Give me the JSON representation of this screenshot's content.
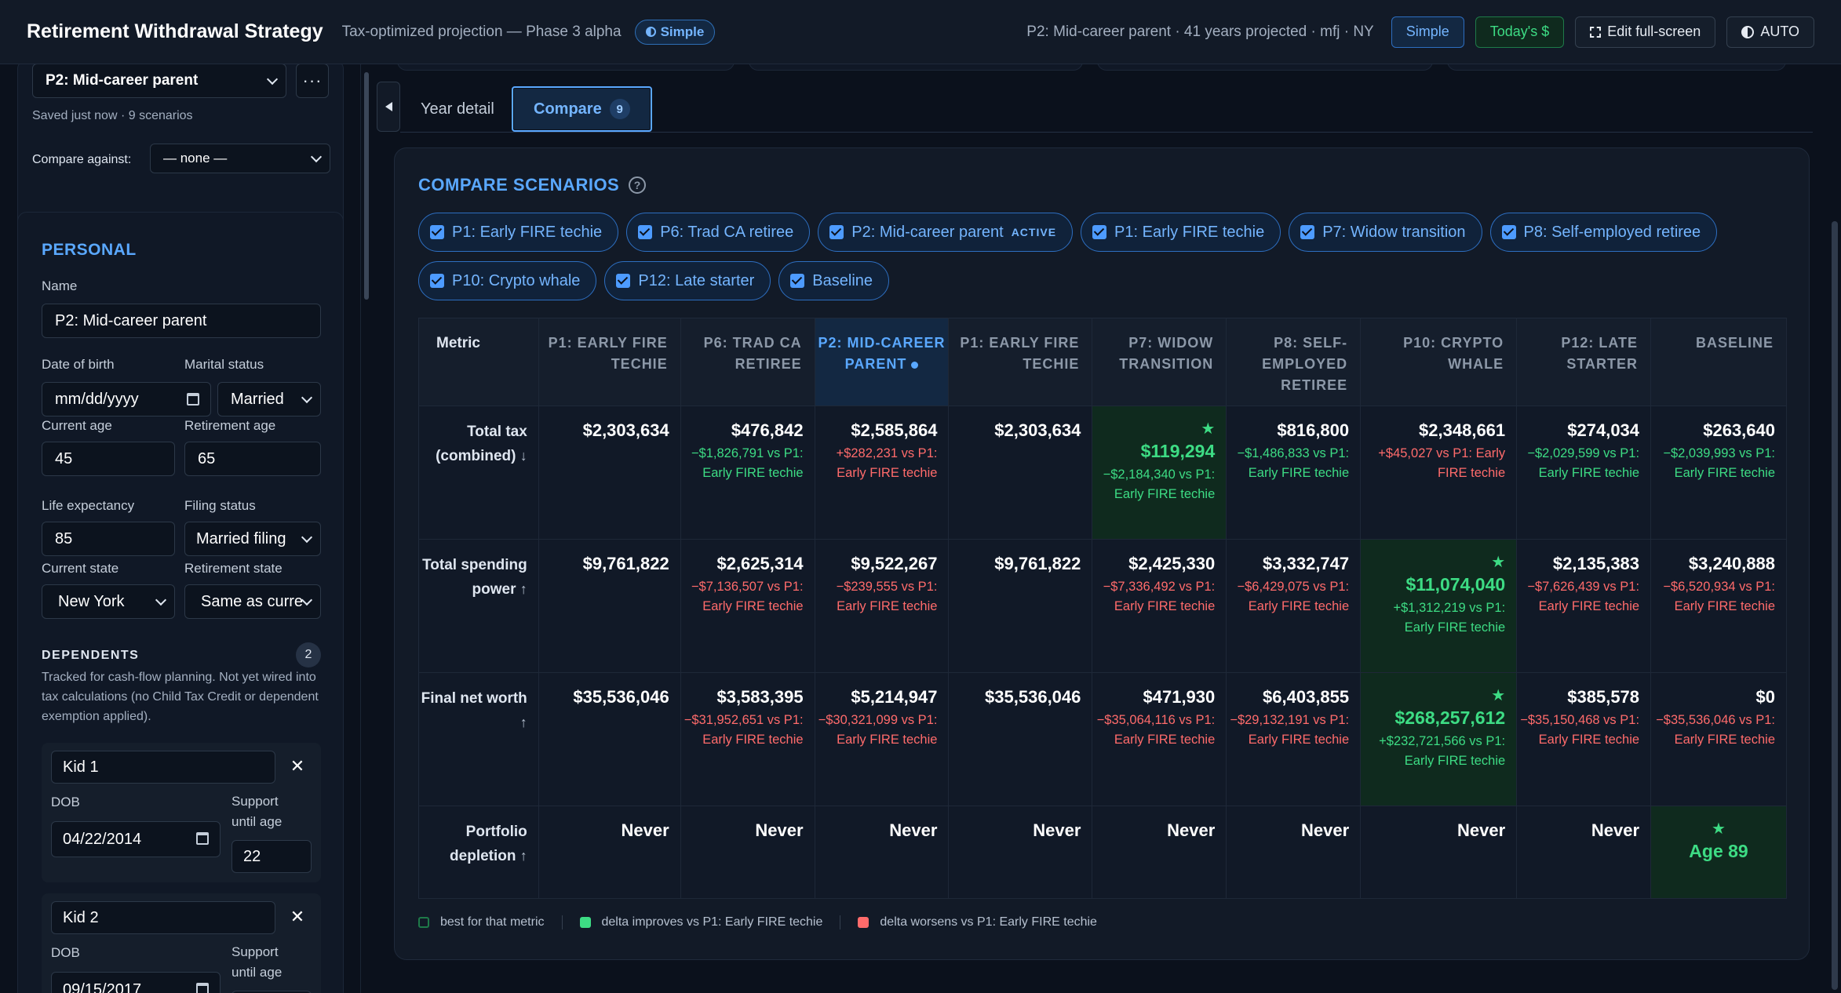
{
  "header": {
    "title": "Retirement Withdrawal Strategy",
    "subtitle": "Tax-optimized projection — Phase 3 alpha",
    "mode_pill": "Simple",
    "scenario_summary": "P2: Mid-career parent · 41 years projected · mfj · NY",
    "btn_simple": "Simple",
    "btn_todays": "Today's $",
    "btn_fullscreen": "Edit full-screen",
    "btn_theme": "AUTO"
  },
  "sidebar": {
    "scenario_select": "P2: Mid-career parent",
    "more_label": "···",
    "saved_note": "Saved just now · 9 scenarios",
    "compare_label": "Compare against:",
    "compare_value": "— none —",
    "personal": {
      "title": "PERSONAL",
      "name_label": "Name",
      "name_value": "P2: Mid-career parent",
      "dob_label": "Date of birth",
      "dob_placeholder": "mm/dd/yyyy",
      "marital_label": "Marital status",
      "marital_value": "Married",
      "current_age_label": "Current age",
      "current_age": "45",
      "retirement_age_label": "Retirement age",
      "retirement_age": "65",
      "life_exp_label": "Life expectancy",
      "life_exp": "85",
      "filing_label": "Filing status",
      "filing_value": "Married filing",
      "current_state_label": "Current state",
      "current_state": "New York",
      "retirement_state_label": "Retirement state",
      "retirement_state": "Same as curre"
    },
    "dependents": {
      "title": "DEPENDENTS",
      "count": "2",
      "note": "Tracked for cash-flow planning. Not yet wired into tax calculations (no Child Tax Credit or dependent exemption applied).",
      "kids": [
        {
          "name": "Kid 1",
          "dob_label": "DOB",
          "dob": "04/22/2014",
          "support_label": "Support until age",
          "support_age": "22"
        },
        {
          "name": "Kid 2",
          "dob_label": "DOB",
          "dob": "09/15/2017",
          "support_label": "Support until age",
          "support_age": ""
        }
      ]
    }
  },
  "tabs": [
    {
      "label": "Year detail"
    },
    {
      "label": "Compare",
      "badge": "9"
    }
  ],
  "compare": {
    "title": "COMPARE SCENARIOS",
    "help": "?",
    "chips": [
      {
        "label": "P1: Early FIRE techie",
        "tag": ""
      },
      {
        "label": "P6: Trad CA retiree",
        "tag": ""
      },
      {
        "label": "P2: Mid-career parent",
        "tag": "ACTIVE"
      },
      {
        "label": "P1: Early FIRE techie",
        "tag": ""
      },
      {
        "label": "P7: Widow transition",
        "tag": ""
      },
      {
        "label": "P8: Self-employed retiree",
        "tag": ""
      },
      {
        "label": "P10: Crypto whale",
        "tag": ""
      },
      {
        "label": "P12: Late starter",
        "tag": ""
      },
      {
        "label": "Baseline",
        "tag": ""
      }
    ],
    "metric_header": "Metric",
    "columns": [
      "P1: EARLY FIRE TECHIE",
      "P6: TRAD CA RETIREE",
      "P2: MID-CAREER PARENT",
      "P1: EARLY FIRE TECHIE",
      "P7: WIDOW TRANSITION",
      "P8: SELF-EMPLOYED RETIREE",
      "P10: CRYPTO WHALE",
      "P12: LATE STARTER",
      "BASELINE"
    ],
    "rows": [
      {
        "metric": "Total tax (combined)",
        "arrow": "↓",
        "cells": [
          {
            "value": "$2,303,634",
            "delta": "",
            "tone": "",
            "best": false
          },
          {
            "value": "$476,842",
            "delta": "−$1,826,791 vs P1: Early FIRE techie",
            "tone": "good",
            "best": false
          },
          {
            "value": "$2,585,864",
            "delta": "+$282,231 vs P1: Early FIRE techie",
            "tone": "bad",
            "best": false
          },
          {
            "value": "$2,303,634",
            "delta": "",
            "tone": "",
            "best": false
          },
          {
            "value": "$119,294",
            "delta": "−$2,184,340 vs P1: Early FIRE techie",
            "tone": "good",
            "best": true
          },
          {
            "value": "$816,800",
            "delta": "−$1,486,833 vs P1: Early FIRE techie",
            "tone": "good",
            "best": false
          },
          {
            "value": "$2,348,661",
            "delta": "+$45,027 vs P1: Early FIRE techie",
            "tone": "bad",
            "best": false
          },
          {
            "value": "$274,034",
            "delta": "−$2,029,599 vs P1: Early FIRE techie",
            "tone": "good",
            "best": false
          },
          {
            "value": "$263,640",
            "delta": "−$2,039,993 vs P1: Early FIRE techie",
            "tone": "good",
            "best": false
          }
        ]
      },
      {
        "metric": "Total spending power",
        "arrow": "↑",
        "cells": [
          {
            "value": "$9,761,822",
            "delta": "",
            "tone": "",
            "best": false
          },
          {
            "value": "$2,625,314",
            "delta": "−$7,136,507 vs P1: Early FIRE techie",
            "tone": "bad",
            "best": false
          },
          {
            "value": "$9,522,267",
            "delta": "−$239,555 vs P1: Early FIRE techie",
            "tone": "bad",
            "best": false
          },
          {
            "value": "$9,761,822",
            "delta": "",
            "tone": "",
            "best": false
          },
          {
            "value": "$2,425,330",
            "delta": "−$7,336,492 vs P1: Early FIRE techie",
            "tone": "bad",
            "best": false
          },
          {
            "value": "$3,332,747",
            "delta": "−$6,429,075 vs P1: Early FIRE techie",
            "tone": "bad",
            "best": false
          },
          {
            "value": "$11,074,040",
            "delta": "+$1,312,219 vs P1: Early FIRE techie",
            "tone": "good",
            "best": true
          },
          {
            "value": "$2,135,383",
            "delta": "−$7,626,439 vs P1: Early FIRE techie",
            "tone": "bad",
            "best": false
          },
          {
            "value": "$3,240,888",
            "delta": "−$6,520,934 vs P1: Early FIRE techie",
            "tone": "bad",
            "best": false
          }
        ]
      },
      {
        "metric": "Final net worth",
        "arrow": "↑",
        "cells": [
          {
            "value": "$35,536,046",
            "delta": "",
            "tone": "",
            "best": false
          },
          {
            "value": "$3,583,395",
            "delta": "−$31,952,651 vs P1: Early FIRE techie",
            "tone": "bad",
            "best": false
          },
          {
            "value": "$5,214,947",
            "delta": "−$30,321,099 vs P1: Early FIRE techie",
            "tone": "bad",
            "best": false
          },
          {
            "value": "$35,536,046",
            "delta": "",
            "tone": "",
            "best": false
          },
          {
            "value": "$471,930",
            "delta": "−$35,064,116 vs P1: Early FIRE techie",
            "tone": "bad",
            "best": false
          },
          {
            "value": "$6,403,855",
            "delta": "−$29,132,191 vs P1: Early FIRE techie",
            "tone": "bad",
            "best": false
          },
          {
            "value": "$268,257,612",
            "delta": "+$232,721,566 vs P1: Early FIRE techie",
            "tone": "good",
            "best": true
          },
          {
            "value": "$385,578",
            "delta": "−$35,150,468 vs P1: Early FIRE techie",
            "tone": "bad",
            "best": false
          },
          {
            "value": "$0",
            "delta": "−$35,536,046 vs P1: Early FIRE techie",
            "tone": "bad",
            "best": false
          }
        ]
      },
      {
        "metric": "Portfolio depletion",
        "arrow": "↑",
        "cells": [
          {
            "value": "Never",
            "delta": "",
            "tone": "",
            "best": false
          },
          {
            "value": "Never",
            "delta": "",
            "tone": "",
            "best": false
          },
          {
            "value": "Never",
            "delta": "",
            "tone": "",
            "best": false
          },
          {
            "value": "Never",
            "delta": "",
            "tone": "",
            "best": false
          },
          {
            "value": "Never",
            "delta": "",
            "tone": "",
            "best": false
          },
          {
            "value": "Never",
            "delta": "",
            "tone": "",
            "best": false
          },
          {
            "value": "Never",
            "delta": "",
            "tone": "",
            "best": false
          },
          {
            "value": "Never",
            "delta": "",
            "tone": "",
            "best": false
          },
          {
            "value": "Age 89",
            "delta": "",
            "tone": "",
            "best": true
          }
        ]
      }
    ],
    "star": "★",
    "legend": {
      "best": "best for that metric",
      "improves": "delta improves vs P1: Early FIRE techie",
      "worsens": "delta worsens vs P1: Early FIRE techie"
    }
  },
  "colors": {
    "accent": "#5aa8ff",
    "good": "#3ddc84",
    "bad": "#ff6b6b",
    "best_bg": "#0f2a1e"
  }
}
